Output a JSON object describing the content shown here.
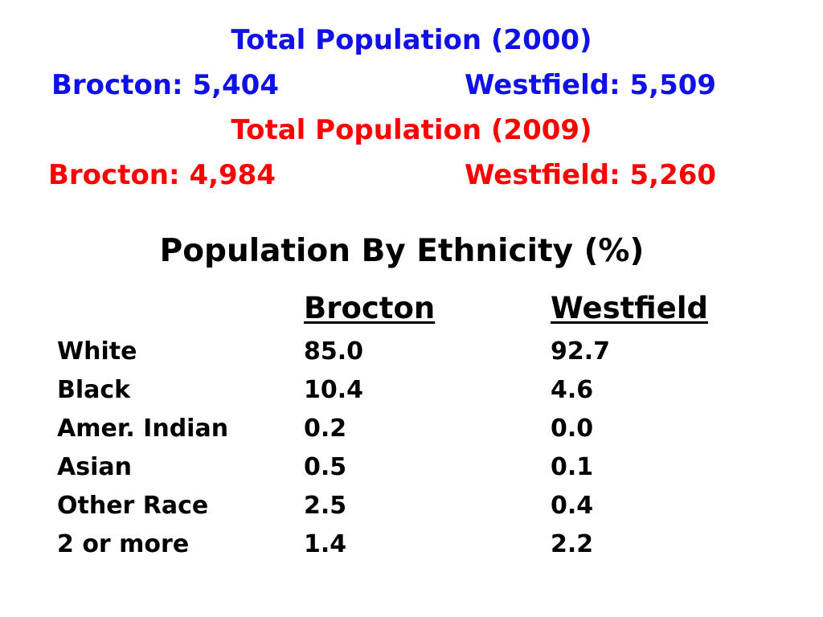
{
  "population_2000": {
    "title": "Total Population (2000)",
    "brocton": "Brocton: 5,404",
    "westfield": "Westfield: 5,509"
  },
  "population_2009": {
    "title": "Total Population (2009)",
    "brocton": "Brocton: 4,984",
    "westfield": "Westfield: 5,260"
  },
  "ethnicity": {
    "title": "Population By Ethnicity (%)",
    "columns": [
      "Brocton",
      "Westfield"
    ],
    "rows": [
      {
        "label": "White",
        "brocton": "85.0",
        "westfield": "92.7"
      },
      {
        "label": "Black",
        "brocton": "10.4",
        "westfield": "4.6"
      },
      {
        "label": "Amer. Indian",
        "brocton": "0.2",
        "westfield": "0.0"
      },
      {
        "label": "Asian",
        "brocton": "0.5",
        "westfield": "0.1"
      },
      {
        "label": "Other Race",
        "brocton": "2.5",
        "westfield": "0.4"
      },
      {
        "label": "2 or more",
        "brocton": "1.4",
        "westfield": "2.2"
      }
    ]
  },
  "colors": {
    "year_2000": "#1010e8",
    "year_2009": "#ff0000",
    "text": "#000000",
    "background": "#ffffff"
  }
}
